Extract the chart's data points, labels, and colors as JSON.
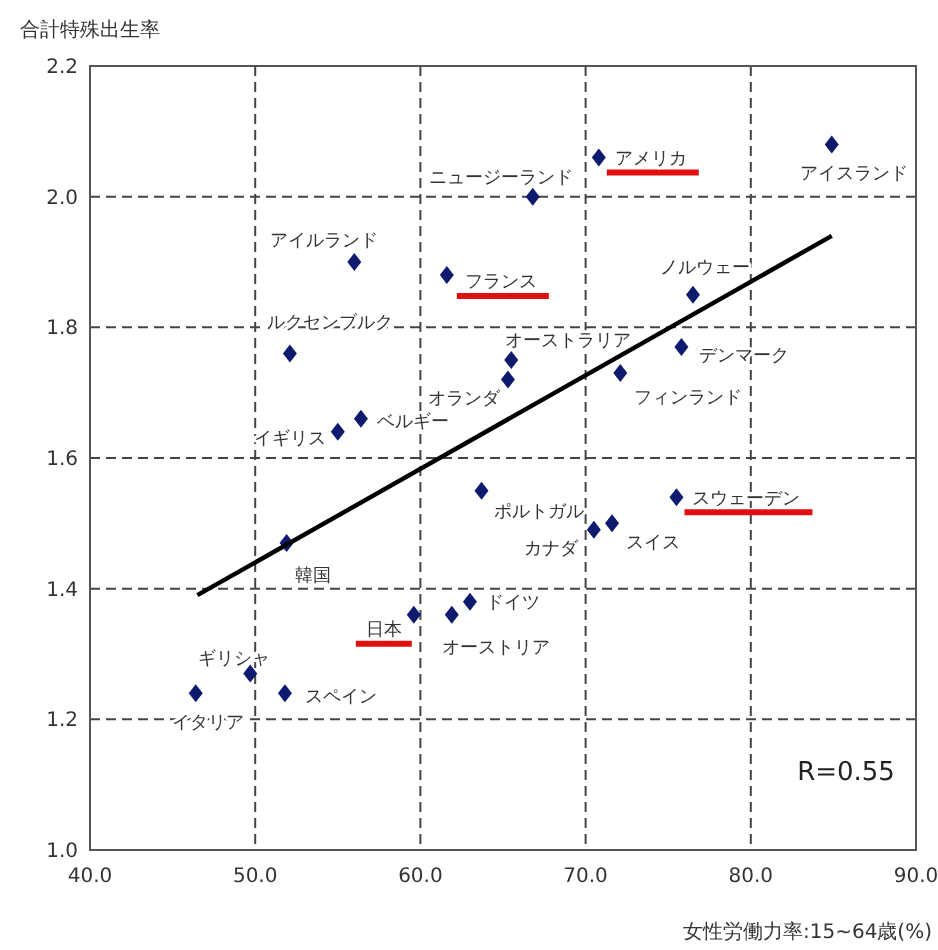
{
  "chart_data": {
    "type": "scatter",
    "xlabel": "女性労働力率:15~64歳(%)",
    "ylabel": "合計特殊出生率",
    "xlim": [
      40,
      90
    ],
    "xticks": [
      {
        "value": 40,
        "label": "40.0"
      },
      {
        "value": 50,
        "label": "50.0"
      },
      {
        "value": 60,
        "label": "60.0"
      },
      {
        "value": 70,
        "label": "70.0"
      },
      {
        "value": 80,
        "label": "80.0"
      },
      {
        "value": 90,
        "label": "90.0"
      }
    ],
    "ylim": [
      1.0,
      2.2
    ],
    "yticks": [
      {
        "value": 1.0,
        "label": "1.0"
      },
      {
        "value": 1.2,
        "label": "1.2"
      },
      {
        "value": 1.4,
        "label": "1.4"
      },
      {
        "value": 1.6,
        "label": "1.6"
      },
      {
        "value": 1.8,
        "label": "1.8"
      },
      {
        "value": 2.0,
        "label": "2.0"
      },
      {
        "value": 2.2,
        "label": "2.2"
      }
    ],
    "grid": true,
    "marker": "diamond",
    "series": [
      {
        "type": "scatter",
        "color": "#0d1a6e",
        "x": [
          84.9,
          66.8,
          56.0,
          76.5,
          52.1,
          65.5,
          75.8,
          65.3,
          72.1,
          56.4,
          55.0,
          63.7,
          70.5,
          71.6,
          51.9,
          63.0,
          61.9,
          49.7,
          51.8,
          46.4
        ],
        "values": [
          2.08,
          2.0,
          1.9,
          1.85,
          1.76,
          1.75,
          1.77,
          1.72,
          1.73,
          1.66,
          1.64,
          1.55,
          1.49,
          1.5,
          1.47,
          1.38,
          1.36,
          1.27,
          1.24,
          1.24
        ]
      },
      {
        "type": "scatter",
        "color": "#0d1a6e",
        "x": [
          70.8,
          61.6,
          75.5,
          59.6
        ],
        "values": [
          2.06,
          1.88,
          1.54,
          1.36
        ]
      },
      {
        "type": "line",
        "color": "#000000",
        "marker": "none",
        "line_style": "solid",
        "x": [
          46.5,
          84.9
        ],
        "values": [
          1.39,
          1.94
        ]
      }
    ],
    "annotations": [
      {
        "text": "アイスランド",
        "x": 84.9,
        "y": 2.08
      },
      {
        "text": "ニュージーランド",
        "x": 66.8,
        "y": 2.0
      },
      {
        "text": "アイルランド",
        "x": 56.0,
        "y": 1.9
      },
      {
        "text": "ノルウェー",
        "x": 76.5,
        "y": 1.85
      },
      {
        "text": "ルクセンブルク",
        "x": 52.1,
        "y": 1.76
      },
      {
        "text": "オーストラリア",
        "x": 65.5,
        "y": 1.75
      },
      {
        "text": "デンマーク",
        "x": 75.8,
        "y": 1.77
      },
      {
        "text": "オランダ",
        "x": 65.3,
        "y": 1.72
      },
      {
        "text": "フィンランド",
        "x": 72.1,
        "y": 1.73
      },
      {
        "text": "ベルギー",
        "x": 56.4,
        "y": 1.66
      },
      {
        "text": "イギリス",
        "x": 55.0,
        "y": 1.64
      },
      {
        "text": "ポルトガル",
        "x": 63.7,
        "y": 1.55
      },
      {
        "text": "カナダ",
        "x": 70.5,
        "y": 1.49
      },
      {
        "text": "スイス",
        "x": 71.6,
        "y": 1.5
      },
      {
        "text": "韓国",
        "x": 51.9,
        "y": 1.47
      },
      {
        "text": "ドイツ",
        "x": 63.0,
        "y": 1.38
      },
      {
        "text": "オーストリア",
        "x": 61.9,
        "y": 1.36
      },
      {
        "text": "ギリシャ",
        "x": 49.7,
        "y": 1.27
      },
      {
        "text": "スペイン",
        "x": 51.8,
        "y": 1.24
      },
      {
        "text": "イタリア",
        "x": 46.4,
        "y": 1.24
      },
      {
        "text": "アメリカ",
        "x": 70.8,
        "y": 2.06
      },
      {
        "text": "フランス",
        "x": 61.6,
        "y": 1.88
      },
      {
        "text": "スウェーデン",
        "x": 75.5,
        "y": 1.54
      },
      {
        "text": "日本",
        "x": 59.6,
        "y": 1.36
      },
      "R=0.55"
    ]
  }
}
